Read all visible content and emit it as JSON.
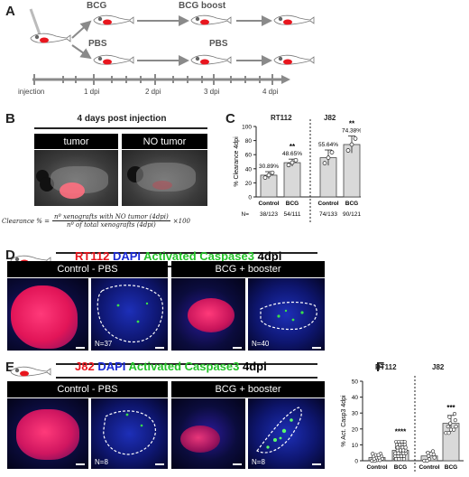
{
  "panels": {
    "A": "A",
    "B": "B",
    "C": "C",
    "D": "D",
    "E": "E",
    "F": "F"
  },
  "panelA": {
    "bcg": "BCG",
    "bcg_boost": "BCG boost",
    "pbs1": "PBS",
    "pbs2": "PBS",
    "timeline": [
      "injection",
      "1 dpi",
      "2 dpi",
      "3 dpi",
      "4 dpi"
    ]
  },
  "panelB": {
    "title": "4 days post injection",
    "tumor": "tumor",
    "no_tumor": "NO tumor",
    "formula_lhs": "Clearance % =",
    "numerator": "nº xenografts with NO tumor (4dpi)",
    "denominator": "nº of total xenografts (4dpi)",
    "factor": "×100"
  },
  "panelC": {
    "ylabel": "% Clearance 4dpi",
    "groups": [
      "RT112",
      "J82"
    ],
    "n_label": "N=",
    "categories": [
      "Control",
      "BCG",
      "Control",
      "BCG"
    ],
    "n_values": [
      "38/123",
      "54/111",
      "74/133",
      "90/121"
    ],
    "pct_labels": [
      "30.89%",
      "48.65%",
      "55.64%",
      "74.38%"
    ],
    "sig": [
      "**",
      "**"
    ],
    "ticks": [
      "0",
      "20",
      "40",
      "60",
      "80",
      "100"
    ]
  },
  "panelD": {
    "title_cell": "RT112",
    "title_dapi": "DAPI",
    "title_casp": "Activated Caspase3",
    "title_dpi": "4dpi",
    "left": "Control - PBS",
    "right": "BCG + booster",
    "n_left": "N=37",
    "n_right": "N=40"
  },
  "panelE": {
    "title_cell": "J82",
    "title_dapi": "DAPI",
    "title_casp": "Activated Caspase3",
    "title_dpi": "4dpi",
    "left": "Control - PBS",
    "right": "BCG + booster",
    "n_left": "N=8",
    "n_right": "N=8"
  },
  "panelF": {
    "ylabel": "% Act. Casp3 4dpi",
    "groups": [
      "RT112",
      "J82"
    ],
    "categories": [
      "Control",
      "BCG",
      "Control",
      "BCG"
    ],
    "sig": [
      "****",
      "***"
    ],
    "ticks": [
      "0",
      "10",
      "20",
      "30",
      "40",
      "50"
    ]
  },
  "colors": {
    "red": "#e8161e",
    "blue": "#1b2bd6",
    "green": "#25c42a",
    "bar": "#d9d9d9"
  },
  "chart_data": [
    {
      "type": "bar",
      "ylabel": "% Clearance 4dpi",
      "categories": [
        "RT112 Control",
        "RT112 BCG",
        "J82 Control",
        "J82 BCG"
      ],
      "values": [
        30.89,
        48.65,
        55.64,
        74.38
      ],
      "errors": [
        5,
        5,
        11,
        12
      ],
      "ylim": [
        0,
        100
      ]
    },
    {
      "type": "bar",
      "ylabel": "% Act. Casp3 4dpi",
      "categories": [
        "RT112 Control",
        "RT112 BCG",
        "J82 Control",
        "J82 BCG"
      ],
      "values": [
        2,
        6.5,
        3,
        23.5
      ],
      "errors": [
        2,
        4.5,
        2.5,
        5
      ],
      "ylim": [
        0,
        50
      ]
    }
  ]
}
